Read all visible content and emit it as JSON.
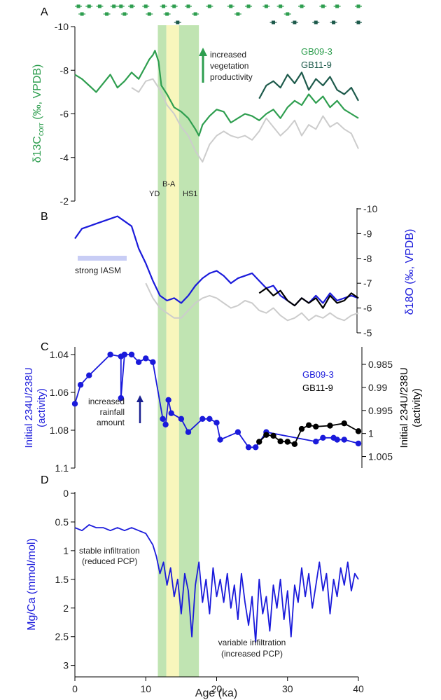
{
  "chart_data": [
    {
      "panel": "A",
      "type": "line",
      "ylabel_main": "δ13C",
      "ylabel_sub": "corr",
      "ylabel_rest": " (‰, VPDB)",
      "ylim": [
        -10,
        -2
      ],
      "y_reversed": true,
      "yticks": [
        "-10",
        "-8",
        "-6",
        "-4",
        "-2"
      ],
      "ytick_values": [
        -10,
        -8,
        -6,
        -4,
        -2
      ],
      "legend": [
        "GB09-3",
        "GB11-9"
      ],
      "annotation": [
        "increased",
        "vegetation",
        "productivity"
      ],
      "band_labels": [
        "YD",
        "B-A",
        "HS1"
      ],
      "series": [
        {
          "name": "GB09-3",
          "color": "#2e9e4f",
          "x": [
            0,
            1,
            2,
            3,
            4,
            5,
            6,
            7,
            8,
            9,
            10,
            10.5,
            11,
            11.3,
            11.8,
            12.2,
            13,
            14,
            15,
            16,
            17,
            17.5,
            18,
            19,
            20,
            21,
            22,
            23,
            24,
            25,
            26,
            27,
            28,
            29,
            30,
            31,
            32,
            33,
            34,
            35,
            36,
            37,
            38,
            39,
            40
          ],
          "y": [
            -7.8,
            -7.6,
            -7.3,
            -7.0,
            -7.4,
            -7.8,
            -7.2,
            -7.5,
            -7.9,
            -7.6,
            -8.2,
            -8.5,
            -8.7,
            -8.9,
            -8.4,
            -7.3,
            -6.9,
            -6.3,
            -6.1,
            -5.8,
            -5.3,
            -5.0,
            -5.5,
            -5.9,
            -6.2,
            -6.1,
            -5.6,
            -5.8,
            -6.0,
            -5.9,
            -5.7,
            -6.0,
            -6.2,
            -5.8,
            -6.3,
            -6.6,
            -6.4,
            -6.9,
            -6.5,
            -6.8,
            -6.3,
            -6.6,
            -6.2,
            -6.0,
            -5.8
          ]
        },
        {
          "name": "GB11-9",
          "color": "#1d5a4b",
          "x": [
            26,
            27,
            28,
            29,
            30,
            31,
            32,
            33,
            34,
            35,
            36,
            37,
            38,
            39,
            40
          ],
          "y": [
            -6.7,
            -7.3,
            -7.5,
            -7.2,
            -7.8,
            -7.4,
            -7.9,
            -7.1,
            -7.6,
            -7.3,
            -7.7,
            -7.1,
            -6.9,
            -7.2,
            -6.6
          ]
        },
        {
          "name": "",
          "color": "#cccccc",
          "x": [
            8,
            9,
            10,
            11,
            12,
            13,
            14,
            15,
            16,
            17,
            18,
            19,
            20,
            21,
            22,
            23,
            24,
            25,
            26,
            27,
            28,
            29,
            30,
            31,
            32,
            33,
            34,
            35,
            36,
            37,
            38,
            39,
            40
          ],
          "y": [
            -7.2,
            -7.0,
            -7.5,
            -7.6,
            -7.1,
            -6.4,
            -6.0,
            -5.4,
            -5.0,
            -4.3,
            -3.8,
            -4.6,
            -5.0,
            -5.2,
            -5.0,
            -4.9,
            -5.0,
            -4.8,
            -5.2,
            -5.8,
            -5.4,
            -5.0,
            -5.3,
            -5.7,
            -5.0,
            -5.5,
            -5.3,
            -5.9,
            -5.4,
            -5.6,
            -5.3,
            -5.1,
            -4.4
          ]
        }
      ],
      "dating_row1_x": [
        0.5,
        2,
        3.5,
        5.5,
        6.5,
        8,
        10,
        12.5,
        14,
        16,
        19,
        22,
        24.5,
        27,
        29,
        32,
        35,
        37,
        40
      ],
      "dating_row2_x": [
        1,
        4.5,
        7,
        10.5,
        13,
        17,
        23,
        30
      ],
      "dating_row3_x": [
        14.5,
        28,
        31,
        34,
        36.5,
        40
      ]
    },
    {
      "panel": "B",
      "type": "line",
      "ylabel_main": "δ18O",
      "ylabel_rest": " (‰, VPDB)",
      "ylim": [
        -10,
        -5
      ],
      "y_reversed": true,
      "yticks": [
        "-10",
        "-9",
        "-8",
        "-7",
        "-6",
        "-5"
      ],
      "ytick_values": [
        -10,
        -9,
        -8,
        -7,
        -6,
        -5
      ],
      "annotation": "strong IASM",
      "series": [
        {
          "name": "",
          "color": "#1a1adb",
          "x": [
            0,
            1,
            2,
            3,
            4,
            5,
            6,
            7,
            8,
            9,
            10,
            11,
            12,
            13,
            14,
            15,
            16,
            17,
            18,
            19,
            20,
            21,
            22,
            23,
            24,
            25,
            26,
            27,
            28,
            29,
            30,
            31,
            32,
            33,
            34,
            35,
            36,
            37,
            38,
            39,
            40
          ],
          "y": [
            -8.8,
            -9.2,
            -9.3,
            -9.4,
            -9.5,
            -9.6,
            -9.7,
            -9.5,
            -9.3,
            -8.4,
            -7.8,
            -7.1,
            -6.5,
            -6.3,
            -6.4,
            -6.2,
            -6.5,
            -6.9,
            -7.2,
            -7.4,
            -7.5,
            -7.3,
            -7.0,
            -7.2,
            -7.3,
            -7.4,
            -7.1,
            -6.8,
            -6.9,
            -6.5,
            -6.3,
            -6.1,
            -6.4,
            -6.2,
            -6.5,
            -6.2,
            -6.6,
            -6.3,
            -6.4,
            -6.5,
            -6.4
          ]
        },
        {
          "name": "",
          "color": "#000000",
          "x": [
            26,
            27,
            28,
            29,
            30,
            31,
            32,
            33,
            34,
            35,
            36,
            37,
            38,
            39,
            40
          ],
          "y": [
            -6.6,
            -6.8,
            -6.5,
            -6.7,
            -6.3,
            -6.1,
            -6.4,
            -6.2,
            -6.4,
            -6.0,
            -6.5,
            -6.2,
            -6.3,
            -6.6,
            -6.4
          ]
        },
        {
          "name": "",
          "color": "#cccccc",
          "x": [
            10,
            11,
            12,
            13,
            14,
            15,
            16,
            17,
            18,
            19,
            20,
            21,
            22,
            23,
            24,
            25,
            26,
            27,
            28,
            29,
            30,
            31,
            32,
            33,
            34,
            35,
            36,
            37,
            38,
            39,
            40
          ],
          "y": [
            -7.0,
            -6.4,
            -6.0,
            -5.8,
            -5.6,
            -5.6,
            -5.9,
            -6.2,
            -6.4,
            -6.5,
            -6.4,
            -6.2,
            -6.0,
            -6.1,
            -6.3,
            -6.2,
            -5.9,
            -5.8,
            -6.0,
            -5.7,
            -5.5,
            -5.6,
            -5.8,
            -5.5,
            -5.7,
            -5.6,
            -5.8,
            -5.6,
            -5.5,
            -5.7,
            -5.8
          ]
        }
      ]
    },
    {
      "panel": "C",
      "type": "scatter-line",
      "ylabel_left_line1": "Initial 234U/238U",
      "ylabel_left_line2": "(activity)",
      "ylabel_right_line1": "Initial 234U/238U",
      "ylabel_right_line2": "(activity)",
      "ylim_left": [
        1.1,
        1.04
      ],
      "yticks_left": [
        "1.04",
        "1.06",
        "1.08",
        "1.1"
      ],
      "ytick_values_left": [
        1.04,
        1.06,
        1.08,
        1.1
      ],
      "ylim_right": [
        1.0075,
        0.9815
      ],
      "yticks_right": [
        "0.985",
        "0.99",
        "0.995",
        "1",
        "1.005"
      ],
      "ytick_values_right": [
        0.985,
        0.99,
        0.995,
        1.0,
        1.005
      ],
      "legend": [
        "GB09-3",
        "GB11-9"
      ],
      "annotation": [
        "increased",
        "rainfall",
        "amount"
      ],
      "series": [
        {
          "name": "GB09-3",
          "color": "#1a1adb",
          "x": [
            0,
            0.8,
            2,
            5,
            6.5,
            6.5,
            7,
            8,
            9,
            10,
            11,
            12.4,
            12.8,
            13.2,
            13.6,
            15,
            16,
            18,
            19,
            20,
            20.5,
            23,
            24.5,
            25.5,
            27,
            34,
            35,
            36.5,
            37,
            38,
            40
          ],
          "y": [
            1.066,
            1.056,
            1.051,
            1.04,
            1.041,
            1.063,
            1.04,
            1.04,
            1.044,
            1.042,
            1.044,
            1.074,
            1.077,
            1.064,
            1.071,
            1.074,
            1.081,
            1.074,
            1.074,
            1.076,
            1.085,
            1.081,
            1.089,
            1.089,
            1.081,
            1.086,
            1.084,
            1.084,
            1.085,
            1.085,
            1.087
          ]
        },
        {
          "name": "GB11-9",
          "color": "#000000",
          "x": [
            26,
            27,
            28,
            29,
            30,
            31,
            32,
            33,
            34,
            36,
            38,
            40
          ],
          "y": [
            1.0018,
            1.0003,
            1.0005,
            1.0017,
            1.0018,
            1.0023,
            0.999,
            0.9982,
            0.9985,
            0.9983,
            0.9978,
            0.9995
          ]
        }
      ]
    },
    {
      "panel": "D",
      "type": "line",
      "ylabel": "Mg/Ca (mmol/mol)",
      "ylim": [
        0,
        3.2
      ],
      "y_reversed": true,
      "yticks": [
        "0",
        "0.5",
        "1",
        "1.5",
        "2",
        "2.5",
        "3"
      ],
      "ytick_values": [
        0,
        0.5,
        1,
        1.5,
        2,
        2.5,
        3
      ],
      "annotation1": [
        "stable infiltration",
        "(reduced PCP)"
      ],
      "annotation2": [
        "variable infiltration",
        "(increased PCP)"
      ],
      "xlabel": "Age (ka)",
      "xlim": [
        0,
        40
      ],
      "xticks": [
        "0",
        "10",
        "20",
        "30",
        "40"
      ],
      "xtick_values": [
        0,
        10,
        20,
        30,
        40
      ],
      "series": [
        {
          "name": "",
          "color": "#1a1adb",
          "x": [
            0,
            1,
            2,
            3,
            4,
            5,
            6,
            7,
            8,
            9,
            10,
            11,
            11.5,
            12,
            12.5,
            13,
            13.5,
            14,
            14.5,
            15,
            15.5,
            16,
            16.5,
            17,
            17.5,
            18,
            18.5,
            19,
            19.5,
            20,
            20.5,
            21,
            21.5,
            22,
            22.5,
            23,
            23.5,
            24,
            24.5,
            25,
            25.5,
            26,
            26.5,
            27,
            27.5,
            28,
            28.5,
            29,
            29.5,
            30,
            30.5,
            31,
            31.5,
            32,
            32.5,
            33,
            33.5,
            34,
            34.5,
            35,
            35.5,
            36,
            36.5,
            37,
            37.5,
            38,
            38.5,
            39,
            39.5,
            40
          ],
          "y": [
            0.6,
            0.65,
            0.55,
            0.6,
            0.6,
            0.65,
            0.6,
            0.65,
            0.6,
            0.65,
            0.7,
            0.9,
            1.1,
            1.4,
            1.2,
            1.6,
            1.3,
            1.8,
            1.5,
            2.1,
            1.4,
            1.7,
            2.5,
            1.6,
            1.2,
            1.9,
            1.5,
            2.1,
            1.3,
            1.8,
            1.5,
            1.9,
            1.4,
            2.0,
            1.6,
            2.2,
            1.4,
            1.9,
            2.3,
            1.8,
            2.6,
            1.5,
            2.1,
            1.8,
            2.4,
            1.6,
            2.0,
            1.5,
            2.2,
            1.7,
            2.5,
            1.6,
            1.9,
            1.3,
            1.8,
            1.4,
            2.0,
            1.6,
            1.2,
            1.7,
            1.4,
            2.1,
            1.5,
            1.8,
            1.3,
            1.6,
            1.2,
            1.7,
            1.4,
            1.5
          ]
        }
      ]
    }
  ],
  "bands": [
    {
      "name": "YD",
      "from": 11.7,
      "to": 12.9,
      "color": "#b5dfa5"
    },
    {
      "name": "B-A",
      "from": 12.9,
      "to": 14.7,
      "color": "#f7f4b0"
    },
    {
      "name": "HS1",
      "from": 14.7,
      "to": 17.5,
      "color": "#b5dfa5"
    }
  ]
}
